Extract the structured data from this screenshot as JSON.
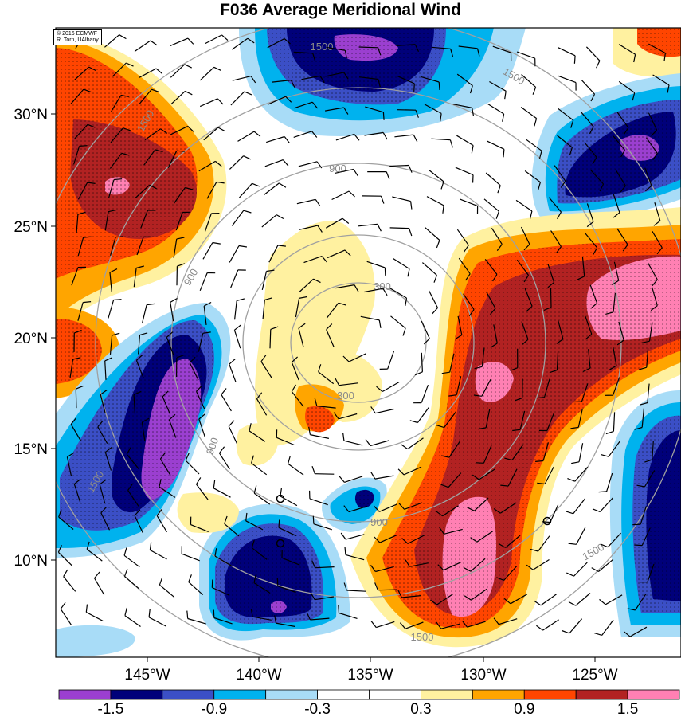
{
  "title": "F036 Average Meridional Wind",
  "credit": {
    "line1": "© 2016 ECMWF",
    "line2": "R. Torn, UAlbany"
  },
  "lat_labels": [
    "30°N",
    "25°N",
    "20°N",
    "15°N",
    "10°N"
  ],
  "lon_labels": [
    "145°W",
    "140°W",
    "135°W",
    "130°W",
    "125°W"
  ],
  "contour_labels": [
    "300",
    "300",
    "900",
    "900",
    "900",
    "900",
    "1500",
    "1500",
    "1500",
    "1500",
    "1500",
    "1500"
  ],
  "colorbar": {
    "colors": [
      "#9b3fd0",
      "#00007a",
      "#3b4fc6",
      "#00b2ee",
      "#a8dcf7",
      "#ffffff",
      "#ffffff",
      "#fff1a0",
      "#ffa500",
      "#ff4500",
      "#b22222",
      "#ff80b3"
    ],
    "labels": [
      "-1.5",
      "-0.9",
      "-0.3",
      "0.3",
      "0.9",
      "1.5"
    ]
  },
  "colors": {
    "contour": "#a0a0a0",
    "barb": "#000000"
  }
}
